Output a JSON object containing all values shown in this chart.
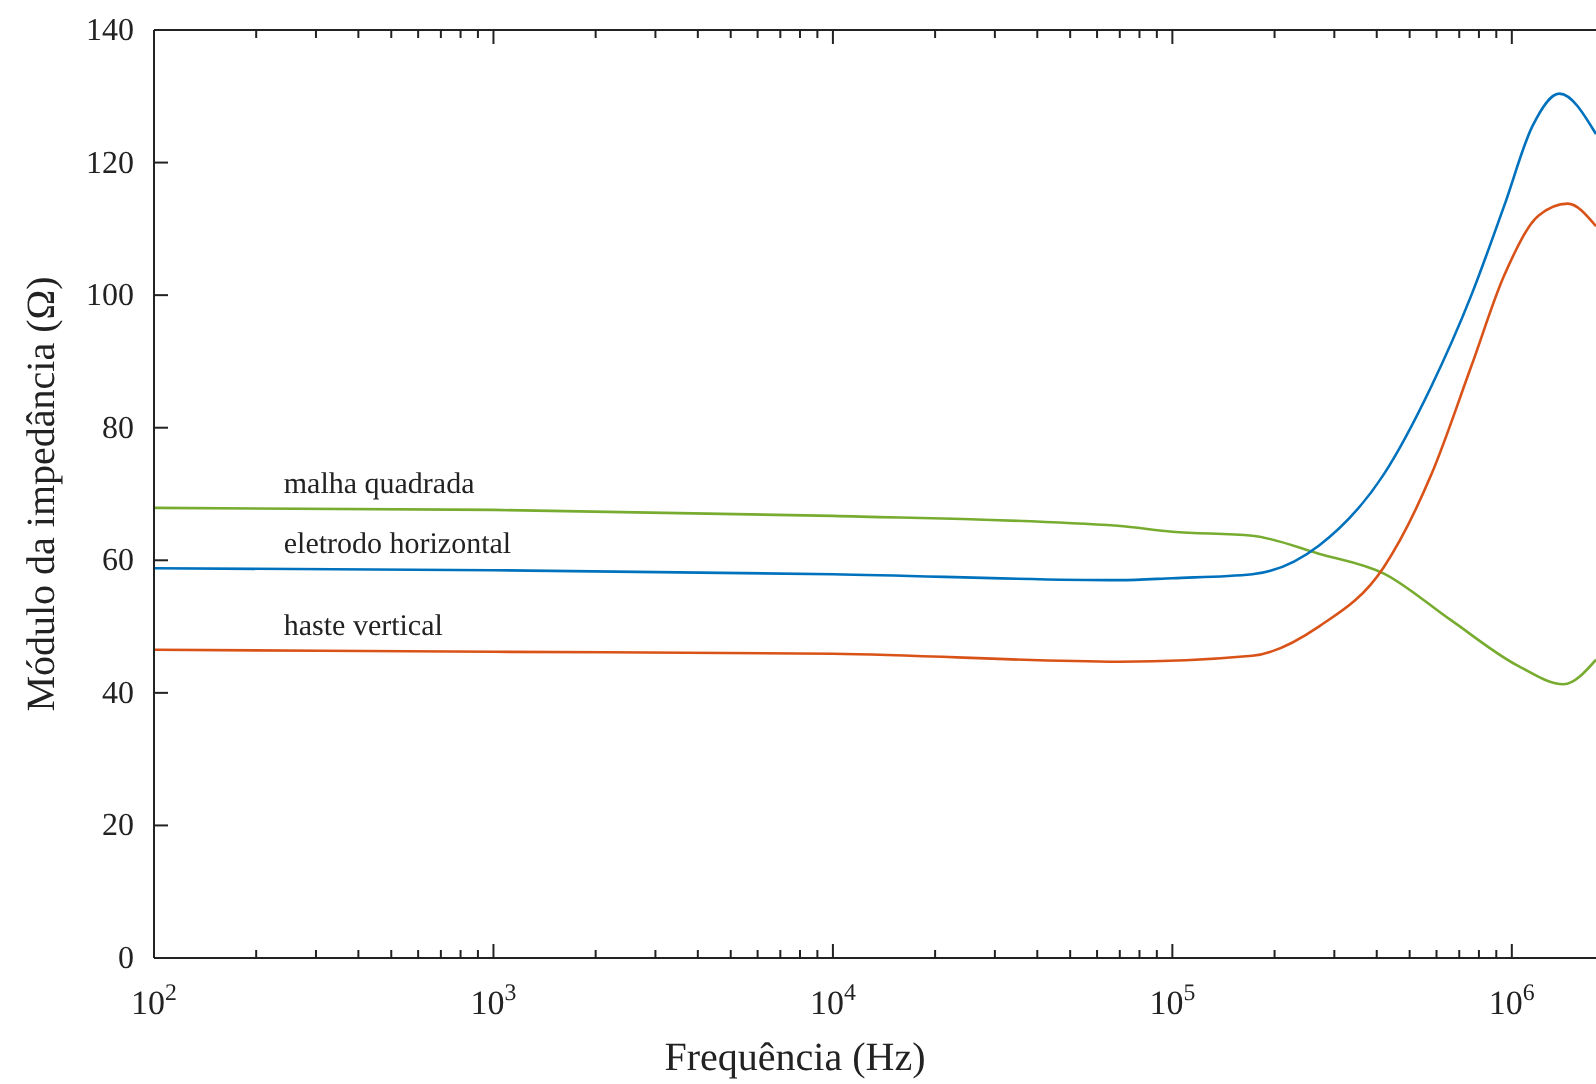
{
  "chart_data": {
    "type": "line",
    "xlabel": "Frequência (Hz)",
    "ylabel": "Módulo da impedância (Ω)",
    "log": "x",
    "xlim": [
      100,
      1770000
    ],
    "ylim": [
      0,
      140
    ],
    "xticks": [
      {
        "value": 100,
        "label": "10$^{2}$"
      },
      {
        "value": 200,
        "label": null
      },
      {
        "value": 300,
        "label": null
      },
      {
        "value": 400,
        "label": null
      },
      {
        "value": 500,
        "label": null
      },
      {
        "value": 600,
        "label": null
      },
      {
        "value": 700,
        "label": null
      },
      {
        "value": 800,
        "label": null
      },
      {
        "value": 900,
        "label": null
      },
      {
        "value": 1000,
        "label": "10$^{3}$"
      },
      {
        "value": 2000,
        "label": null
      },
      {
        "value": 3000,
        "label": null
      },
      {
        "value": 4000,
        "label": null
      },
      {
        "value": 5000,
        "label": null
      },
      {
        "value": 6000,
        "label": null
      },
      {
        "value": 7000,
        "label": null
      },
      {
        "value": 8000,
        "label": null
      },
      {
        "value": 9000,
        "label": null
      },
      {
        "value": 10000,
        "label": "10$^{4}$"
      },
      {
        "value": 20000,
        "label": null
      },
      {
        "value": 30000,
        "label": null
      },
      {
        "value": 40000,
        "label": null
      },
      {
        "value": 50000,
        "label": null
      },
      {
        "value": 60000,
        "label": null
      },
      {
        "value": 70000,
        "label": null
      },
      {
        "value": 80000,
        "label": null
      },
      {
        "value": 90000,
        "label": null
      },
      {
        "value": 100000,
        "label": "10$^{5}$"
      },
      {
        "value": 200000,
        "label": null
      },
      {
        "value": 300000,
        "label": null
      },
      {
        "value": 400000,
        "label": null
      },
      {
        "value": 500000,
        "label": null
      },
      {
        "value": 600000,
        "label": null
      },
      {
        "value": 700000,
        "label": null
      },
      {
        "value": 800000,
        "label": null
      },
      {
        "value": 900000,
        "label": null
      },
      {
        "value": 1000000,
        "label": "10$^{6}$"
      }
    ],
    "yticks": [
      0,
      20,
      40,
      60,
      80,
      100,
      120,
      140
    ],
    "grid": false,
    "marker": "none",
    "line_style": "solid",
    "series": [
      {
        "name": "malha quadrada",
        "color": "#77ac30",
        "x": [
          100,
          1000,
          10000,
          69000,
          100000,
          172000,
          270000,
          420000,
          660000,
          1050000,
          1420000,
          1770000
        ],
        "values": [
          67.9,
          67.6,
          66.7,
          65.2,
          64.3,
          63.7,
          61,
          58,
          51,
          44,
          41.3,
          45
        ]
      },
      {
        "name": "eletrodo horizontal",
        "color": "#0072bd",
        "x": [
          100,
          1000,
          10000,
          70000,
          100000,
          172000,
          270000,
          420000,
          580000,
          760000,
          950000,
          1150000,
          1380000,
          1770000
        ],
        "values": [
          58.8,
          58.5,
          57.9,
          57,
          57.3,
          57.9,
          62.2,
          73,
          86.3,
          100,
          113.5,
          125.5,
          130.4,
          124.3
        ]
      },
      {
        "name": "haste vertical",
        "color": "#d95319",
        "x": [
          100,
          1000,
          10000,
          70000,
          172000,
          270000,
          420000,
          580000,
          760000,
          950000,
          1200000,
          1460000,
          1770000
        ],
        "values": [
          46.5,
          46.2,
          45.9,
          44.7,
          45.6,
          50,
          59,
          73,
          89.3,
          103,
          112,
          113.8,
          110.4
        ]
      }
    ]
  }
}
